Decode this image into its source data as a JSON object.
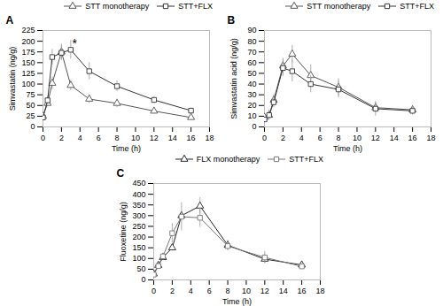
{
  "chart_data": [
    {
      "type": "line",
      "title": "A",
      "x_label": "Time (h)",
      "y_label": "Simvastatin (ng/g)",
      "xlim": [
        0,
        18
      ],
      "xticks": [
        0,
        2,
        4,
        6,
        8,
        10,
        12,
        14,
        16,
        18
      ],
      "ylim": [
        0,
        225
      ],
      "yticks": [
        0,
        25,
        50,
        75,
        100,
        125,
        150,
        175,
        200,
        225
      ],
      "grid": false,
      "legend": "center right",
      "x": [
        0,
        0.5,
        1,
        2,
        3,
        5,
        8,
        12,
        16
      ],
      "series": [
        {
          "name": "STT monotherapy",
          "color": "#555555",
          "marker": "triangle",
          "line_style": "solid",
          "values": [
            25,
            55,
            102,
            175,
            97,
            65,
            55,
            37,
            22
          ],
          "errors": [
            3,
            8,
            15,
            18,
            12,
            10,
            10,
            7,
            5
          ]
        },
        {
          "name": "STT+FLX",
          "color": "#333333",
          "marker": "square",
          "line_style": "solid",
          "values": [
            22,
            62,
            163,
            173,
            180,
            130,
            95,
            63,
            38
          ],
          "errors": [
            3,
            10,
            18,
            18,
            22,
            20,
            12,
            8,
            6
          ]
        }
      ],
      "annotations": [
        {
          "x": 3.15,
          "y": 184,
          "text": "*"
        }
      ]
    },
    {
      "type": "line",
      "title": "B",
      "x_label": "Time (h)",
      "y_label": "Simvastatin acid (ng/g)",
      "xlim": [
        0,
        18
      ],
      "xticks": [
        0,
        2,
        4,
        6,
        8,
        10,
        12,
        14,
        16,
        18
      ],
      "ylim": [
        0,
        90
      ],
      "yticks": [
        0,
        10,
        20,
        30,
        40,
        50,
        60,
        70,
        80,
        90
      ],
      "grid": false,
      "legend": "center right",
      "x": [
        0,
        0.5,
        1,
        2,
        3,
        5,
        8,
        12,
        16
      ],
      "series": [
        {
          "name": "STT monotherapy",
          "color": "#555555",
          "marker": "triangle",
          "line_style": "solid",
          "values": [
            9,
            11,
            25,
            57,
            68,
            48,
            37,
            18,
            16
          ],
          "errors": [
            2,
            3,
            5,
            7,
            8,
            10,
            8,
            5,
            4
          ]
        },
        {
          "name": "STT+FLX",
          "color": "#333333",
          "marker": "square",
          "line_style": "solid",
          "values": [
            7,
            11,
            23,
            55,
            52,
            40,
            35,
            17,
            15
          ],
          "errors": [
            2,
            5,
            5,
            8,
            10,
            8,
            8,
            7,
            4
          ]
        }
      ]
    },
    {
      "type": "line",
      "title": "C",
      "x_label": "Time (h)",
      "y_label": "Fluoxetine (ng/g)",
      "xlim": [
        0,
        18
      ],
      "xticks": [
        0,
        2,
        4,
        6,
        8,
        10,
        12,
        14,
        16,
        18
      ],
      "ylim": [
        0,
        450
      ],
      "yticks": [
        0,
        50,
        100,
        150,
        200,
        250,
        300,
        350,
        400,
        450
      ],
      "grid": false,
      "legend": "center right",
      "x": [
        0,
        0.5,
        1,
        2,
        3,
        5,
        8,
        12,
        16
      ],
      "series": [
        {
          "name": "FLX monotherapy",
          "color": "#222222",
          "marker": "triangle",
          "line_style": "solid",
          "values": [
            28,
            68,
            105,
            150,
            300,
            345,
            162,
            97,
            70
          ],
          "errors": [
            4,
            10,
            12,
            15,
            20,
            38,
            22,
            20,
            12
          ]
        },
        {
          "name": "STT+FLX",
          "color": "#777777",
          "marker": "square",
          "line_style": "solid",
          "values": [
            25,
            65,
            110,
            218,
            295,
            290,
            158,
            105,
            63
          ],
          "errors": [
            4,
            12,
            15,
            45,
            65,
            45,
            22,
            28,
            12
          ]
        }
      ]
    }
  ]
}
